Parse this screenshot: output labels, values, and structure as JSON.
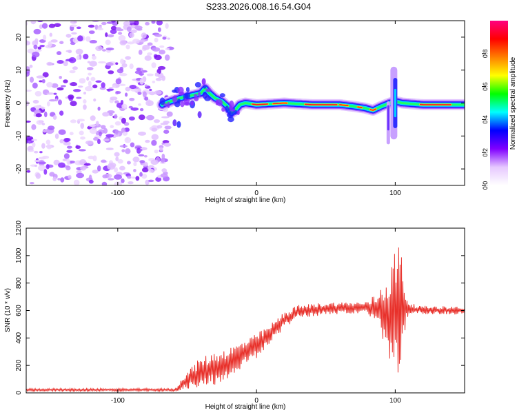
{
  "title": "S233.2026.008.16.54.G04",
  "chart_data": [
    {
      "type": "heatmap",
      "name": "spectrogram",
      "xlabel": "Height of straight line (km)",
      "ylabel": "Frequency (Hz)",
      "xlim": [
        -166,
        150
      ],
      "ylim": [
        -25,
        25
      ],
      "xticks": [
        -100,
        0,
        100
      ],
      "xtick_labels": [
        "-100",
        "0",
        "100"
      ],
      "yticks": [
        -20,
        -10,
        0,
        10,
        20
      ],
      "ytick_labels": [
        "-20",
        "-10",
        "0",
        "10",
        "20"
      ],
      "noise_region_x": [
        -166,
        -65
      ],
      "signal_track": [
        {
          "x": -68,
          "f": -0.5
        },
        {
          "x": -62,
          "f": 0.5
        },
        {
          "x": -55,
          "f": 1.5
        },
        {
          "x": -50,
          "f": 2.0
        },
        {
          "x": -45,
          "f": 2.5
        },
        {
          "x": -40,
          "f": 3.0
        },
        {
          "x": -37,
          "f": 4.5
        },
        {
          "x": -34,
          "f": 3.0
        },
        {
          "x": -30,
          "f": 1.5
        },
        {
          "x": -25,
          "f": 0.5
        },
        {
          "x": -21,
          "f": -1.0
        },
        {
          "x": -18,
          "f": -3.0
        },
        {
          "x": -15,
          "f": -2.0
        },
        {
          "x": -12,
          "f": -0.5
        },
        {
          "x": -8,
          "f": 0.0
        },
        {
          "x": 0,
          "f": -0.5
        },
        {
          "x": 20,
          "f": 0.0
        },
        {
          "x": 40,
          "f": -0.5
        },
        {
          "x": 60,
          "f": -0.5
        },
        {
          "x": 70,
          "f": -1.0
        },
        {
          "x": 78,
          "f": -1.5
        },
        {
          "x": 84,
          "f": -2.2
        },
        {
          "x": 90,
          "f": -1.0
        },
        {
          "x": 96,
          "f": 0.0
        },
        {
          "x": 100,
          "f": 0.5
        },
        {
          "x": 105,
          "f": 0.0
        },
        {
          "x": 120,
          "f": -0.5
        },
        {
          "x": 140,
          "f": -0.5
        },
        {
          "x": 150,
          "f": -0.5
        }
      ],
      "colorbar": {
        "label": "Normalized spectral amplitude",
        "range": [
          0,
          1
        ],
        "ticks": [
          0.0,
          0.2,
          0.4,
          0.6,
          0.8
        ],
        "tick_labels": [
          "0.0",
          "0.2",
          "0.4",
          "0.6",
          "0.8"
        ],
        "colors": [
          "#ffffff",
          "#e6c8ff",
          "#8000ff",
          "#0000ff",
          "#00ffff",
          "#00ff00",
          "#ffff00",
          "#ff8000",
          "#ff0000",
          "#ff0080"
        ]
      }
    },
    {
      "type": "line",
      "name": "snr",
      "xlabel": "Height of straight line (km)",
      "ylabel": "SNR (10 * v/v)",
      "xlim": [
        -166,
        150
      ],
      "ylim": [
        0,
        1200
      ],
      "xticks": [
        -100,
        0,
        100
      ],
      "xtick_labels": [
        "-100",
        "0",
        "100"
      ],
      "yticks": [
        0,
        200,
        400,
        600,
        800,
        1000,
        1200
      ],
      "ytick_labels": [
        "0",
        "200",
        "400",
        "600",
        "800",
        "1000",
        "1200"
      ],
      "color": "#e8302a",
      "envelope": [
        {
          "x": -166,
          "mean": 22,
          "amp": 10
        },
        {
          "x": -58,
          "mean": 22,
          "amp": 10
        },
        {
          "x": -52,
          "mean": 80,
          "amp": 60
        },
        {
          "x": -40,
          "mean": 150,
          "amp": 110
        },
        {
          "x": -30,
          "mean": 180,
          "amp": 120
        },
        {
          "x": -20,
          "mean": 220,
          "amp": 110
        },
        {
          "x": -10,
          "mean": 280,
          "amp": 100
        },
        {
          "x": 0,
          "mean": 340,
          "amp": 90
        },
        {
          "x": 10,
          "mean": 430,
          "amp": 70
        },
        {
          "x": 20,
          "mean": 530,
          "amp": 60
        },
        {
          "x": 30,
          "mean": 590,
          "amp": 50
        },
        {
          "x": 50,
          "mean": 615,
          "amp": 45
        },
        {
          "x": 80,
          "mean": 620,
          "amp": 45
        },
        {
          "x": 88,
          "mean": 600,
          "amp": 150
        },
        {
          "x": 95,
          "mean": 580,
          "amp": 300
        },
        {
          "x": 100,
          "mean": 580,
          "amp": 480
        },
        {
          "x": 105,
          "mean": 620,
          "amp": 500
        },
        {
          "x": 108,
          "mean": 610,
          "amp": 80
        },
        {
          "x": 115,
          "mean": 605,
          "amp": 30
        },
        {
          "x": 150,
          "mean": 600,
          "amp": 30
        }
      ]
    }
  ]
}
